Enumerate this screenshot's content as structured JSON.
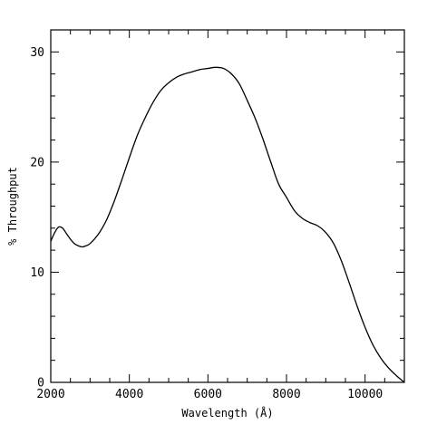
{
  "chart_data": {
    "type": "line",
    "xlabel": "Wavelength (Å)",
    "ylabel": "% Throughput",
    "xlim": [
      2000,
      11000
    ],
    "ylim": [
      0,
      32
    ],
    "x_ticks": [
      2000,
      4000,
      6000,
      8000,
      10000
    ],
    "y_ticks": [
      0,
      10,
      20,
      30
    ],
    "x_minor_step": 500,
    "y_minor_step": 2,
    "grid": false,
    "series": [
      {
        "x": [
          2000,
          2100,
          2200,
          2300,
          2400,
          2500,
          2600,
          2700,
          2800,
          2900,
          3000,
          3200,
          3400,
          3600,
          3800,
          4000,
          4200,
          4400,
          4600,
          4800,
          5000,
          5200,
          5400,
          5600,
          5800,
          6000,
          6200,
          6400,
          6600,
          6800,
          7000,
          7200,
          7400,
          7600,
          7800,
          8000,
          8200,
          8400,
          8600,
          8800,
          9000,
          9200,
          9400,
          9600,
          9800,
          10000,
          10200,
          10400,
          10600,
          10800,
          11000
        ],
        "values": [
          12.8,
          13.6,
          14.1,
          14.0,
          13.5,
          13.0,
          12.6,
          12.4,
          12.3,
          12.4,
          12.6,
          13.4,
          14.6,
          16.3,
          18.3,
          20.4,
          22.4,
          24.0,
          25.4,
          26.5,
          27.2,
          27.7,
          28.0,
          28.2,
          28.4,
          28.5,
          28.6,
          28.5,
          28.0,
          27.1,
          25.6,
          24.0,
          22.1,
          20.0,
          18.0,
          16.8,
          15.6,
          14.9,
          14.5,
          14.2,
          13.6,
          12.6,
          11.0,
          9.0,
          6.9,
          5.0,
          3.4,
          2.2,
          1.3,
          0.6,
          0.0
        ]
      }
    ]
  }
}
